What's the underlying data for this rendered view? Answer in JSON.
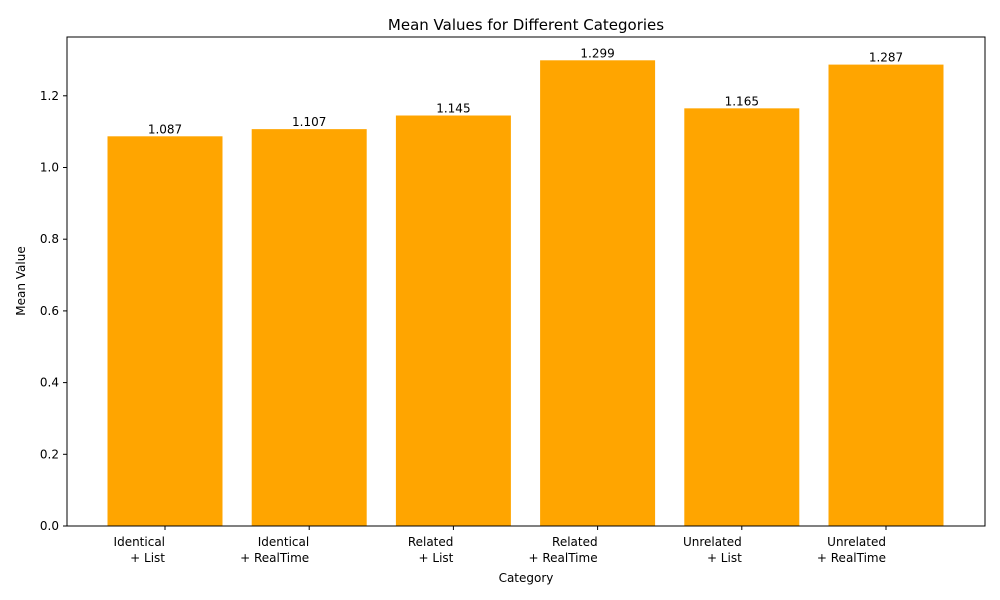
{
  "chart_data": {
    "type": "bar",
    "title": "Mean Values for Different Categories",
    "xlabel": "Category",
    "ylabel": "Mean Value",
    "categories": [
      [
        "Identical",
        "+ List"
      ],
      [
        "Identical",
        "+ RealTime"
      ],
      [
        "Related",
        "+ List"
      ],
      [
        "Related",
        "+ RealTime"
      ],
      [
        "Unrelated",
        "+ List"
      ],
      [
        "Unrelated",
        "+ RealTime"
      ]
    ],
    "values": [
      1.087,
      1.107,
      1.145,
      1.299,
      1.165,
      1.287
    ],
    "value_labels": [
      "1.087",
      "1.107",
      "1.145",
      "1.299",
      "1.165",
      "1.287"
    ],
    "yticks": [
      0.0,
      0.2,
      0.4,
      0.6,
      0.8,
      1.0,
      1.2
    ],
    "ytick_labels": [
      "0.0",
      "0.2",
      "0.4",
      "0.6",
      "0.8",
      "1.0",
      "1.2"
    ],
    "ylim": [
      0,
      1.364
    ],
    "bar_color": "#ffa500",
    "grid": false,
    "legend": "none"
  }
}
